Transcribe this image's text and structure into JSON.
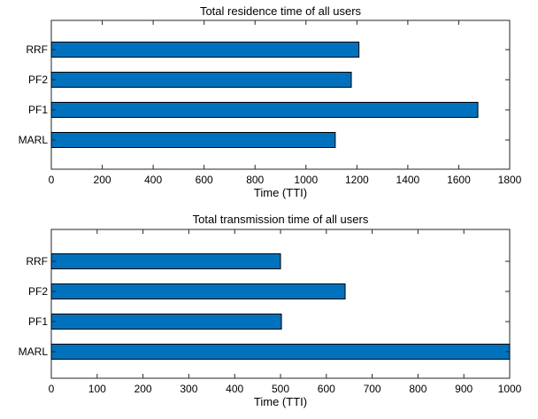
{
  "chart_data": [
    {
      "type": "bar",
      "orientation": "horizontal",
      "title": "Total residence time of all users",
      "xlabel": "Time (TTI)",
      "ylabel": "",
      "categories": [
        "MARL",
        "PF1",
        "PF2",
        "RRF"
      ],
      "values": [
        1115,
        1675,
        1178,
        1208
      ],
      "xlim": [
        0,
        1800
      ],
      "xticks": [
        0,
        200,
        400,
        600,
        800,
        1000,
        1200,
        1400,
        1600,
        1800
      ],
      "grid": false,
      "bar_color": "#0072BD"
    },
    {
      "type": "bar",
      "orientation": "horizontal",
      "title": "Total transmission time of all users",
      "xlabel": "Time (TTI)",
      "ylabel": "",
      "categories": [
        "MARL",
        "PF1",
        "PF2",
        "RRF"
      ],
      "values": [
        1000,
        502,
        641,
        500
      ],
      "xlim": [
        0,
        1000
      ],
      "xticks": [
        0,
        100,
        200,
        300,
        400,
        500,
        600,
        700,
        800,
        900,
        1000
      ],
      "grid": false,
      "bar_color": "#0072BD"
    }
  ]
}
